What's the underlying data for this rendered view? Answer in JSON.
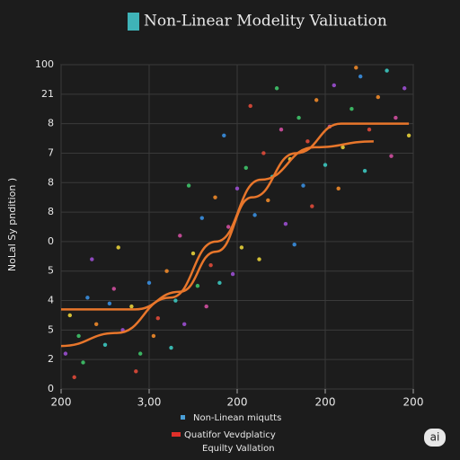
{
  "chart_data": {
    "type": "scatter",
    "title": "Non-Linear Modelity Valiuation",
    "title_marker_color": "#3fb3b8",
    "y_label": "NoLal Sy pndition )",
    "xlim": [
      0,
      4
    ],
    "ylim": [
      0,
      11
    ],
    "xticks": [
      {
        "value": 0,
        "label": "200"
      },
      {
        "value": 1,
        "label": "3,00"
      },
      {
        "value": 2,
        "label": "200"
      },
      {
        "value": 3,
        "label": "200"
      },
      {
        "value": 4,
        "label": "200"
      }
    ],
    "yticks": [
      {
        "value": 0,
        "label": "0"
      },
      {
        "value": 1,
        "label": "2"
      },
      {
        "value": 2,
        "label": "5"
      },
      {
        "value": 3,
        "label": "4"
      },
      {
        "value": 4,
        "label": "5"
      },
      {
        "value": 5,
        "label": "0"
      },
      {
        "value": 6,
        "label": "8"
      },
      {
        "value": 7,
        "label": "8"
      },
      {
        "value": 8,
        "label": "7"
      },
      {
        "value": 9,
        "label": "8"
      },
      {
        "value": 10,
        "label": "21"
      },
      {
        "value": 11,
        "label": "100"
      }
    ],
    "grid": true,
    "legend_colors": [
      "#4a9fd8",
      "#e0302a",
      null
    ],
    "series": [
      {
        "name": "Non-Linean miqutts",
        "type": "scatter",
        "x": [
          0.05,
          0.1,
          0.2,
          0.3,
          0.15,
          0.4,
          0.5,
          0.6,
          0.7,
          0.8,
          0.9,
          1.0,
          1.1,
          1.2,
          1.3,
          1.35,
          1.4,
          1.5,
          1.55,
          1.6,
          1.7,
          1.75,
          1.8,
          1.9,
          2.0,
          2.05,
          2.1,
          2.2,
          2.3,
          2.35,
          2.4,
          2.5,
          2.55,
          2.6,
          2.7,
          2.75,
          2.8,
          2.9,
          3.0,
          3.05,
          3.1,
          3.2,
          3.3,
          3.4,
          3.5,
          3.6,
          3.7,
          3.8,
          3.9,
          3.95,
          0.25,
          0.55,
          0.85,
          1.05,
          1.25,
          1.65,
          1.95,
          2.25,
          2.45,
          2.65,
          2.85,
          3.15,
          3.45,
          3.75,
          0.35,
          0.65,
          1.45,
          1.85,
          2.15,
          3.35
        ],
        "values": [
          1.2,
          2.5,
          1.8,
          3.1,
          0.4,
          2.2,
          1.5,
          3.4,
          2.0,
          2.8,
          1.2,
          3.6,
          2.4,
          4.0,
          3.0,
          5.2,
          2.2,
          4.6,
          3.5,
          5.8,
          4.2,
          6.5,
          3.6,
          5.5,
          6.8,
          4.8,
          7.5,
          5.9,
          8.0,
          6.4,
          7.2,
          8.8,
          5.6,
          7.8,
          9.2,
          6.9,
          8.4,
          9.8,
          7.6,
          8.9,
          10.3,
          8.2,
          9.5,
          10.6,
          8.8,
          9.9,
          10.8,
          9.2,
          10.2,
          8.6,
          0.9,
          2.9,
          0.6,
          1.8,
          1.4,
          2.8,
          3.9,
          4.4,
          10.2,
          4.9,
          6.2,
          6.8,
          7.4,
          7.9,
          4.4,
          4.8,
          6.9,
          8.6,
          9.6,
          10.9
        ],
        "colors": [
          "#9b4fd0",
          "#e8d23a",
          "#3fc46a",
          "#3a8fe0",
          "#e04a3a",
          "#f08a2a",
          "#3cc8c0",
          "#d04fa0",
          "#9b4fd0",
          "#e8d23a",
          "#3fc46a",
          "#3a8fe0",
          "#e04a3a",
          "#f08a2a",
          "#3cc8c0",
          "#d04fa0",
          "#9b4fd0",
          "#e8d23a",
          "#3fc46a",
          "#3a8fe0",
          "#e04a3a",
          "#f08a2a",
          "#3cc8c0",
          "#d04fa0",
          "#9b4fd0",
          "#e8d23a",
          "#3fc46a",
          "#3a8fe0",
          "#e04a3a",
          "#f08a2a",
          "#3cc8c0",
          "#d04fa0",
          "#9b4fd0",
          "#e8d23a",
          "#3fc46a",
          "#3a8fe0",
          "#e04a3a",
          "#f08a2a",
          "#3cc8c0",
          "#d04fa0",
          "#9b4fd0",
          "#e8d23a",
          "#3fc46a",
          "#3a8fe0",
          "#e04a3a",
          "#f08a2a",
          "#3cc8c0",
          "#d04fa0",
          "#9b4fd0",
          "#e8d23a",
          "#3fc46a",
          "#3a8fe0",
          "#e04a3a",
          "#f08a2a",
          "#3cc8c0",
          "#d04fa0",
          "#9b4fd0",
          "#e8d23a",
          "#3fc46a",
          "#3a8fe0",
          "#e04a3a",
          "#f08a2a",
          "#3cc8c0",
          "#d04fa0",
          "#9b4fd0",
          "#e8d23a",
          "#3fc46a",
          "#3a8fe0",
          "#e04a3a",
          "#f08a2a"
        ]
      },
      {
        "name": "Quatifor Vevdplaticy",
        "type": "line",
        "color": "#e8762b",
        "x": [
          0,
          0.84,
          1.35,
          1.76,
          2.17,
          2.67,
          3.18,
          3.95
        ],
        "values": [
          2.7,
          2.7,
          3.3,
          4.66,
          6.5,
          8.0,
          9.0,
          9.0
        ]
      },
      {
        "name": "Equilty Vallation",
        "type": "line",
        "color": "#e8762b",
        "x": [
          0,
          0.63,
          1.24,
          1.76,
          2.27,
          2.88,
          3.55
        ],
        "values": [
          1.46,
          1.9,
          3.1,
          5.0,
          7.1,
          8.2,
          8.4
        ]
      }
    ]
  },
  "badge": "ai"
}
